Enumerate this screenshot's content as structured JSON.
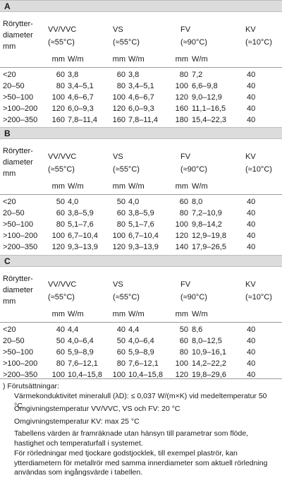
{
  "sections": [
    {
      "label": "A",
      "headers": {
        "row_header": [
          "Rörytter-",
          "diameter",
          "mm"
        ],
        "vv": [
          "VV/VVC",
          "(≈55°C)"
        ],
        "vs": [
          "VS",
          "(≈55°C)"
        ],
        "fv": [
          "FV",
          "(≈90°C)"
        ],
        "kv": [
          "KV",
          "(≈10°C)"
        ]
      },
      "units": {
        "mm": "mm",
        "wm": "W/m"
      },
      "rows": [
        [
          "<20",
          "60",
          "3,8",
          "60",
          "3,8",
          "80",
          "7,2",
          "40"
        ],
        [
          "20–50",
          "80",
          "3,4–5,1",
          "80",
          "3,4–5,1",
          "100",
          "6,6–9,8",
          "40"
        ],
        [
          ">50–100",
          "100",
          "4,6–6,7",
          "100",
          "4,6–6,7",
          "120",
          "9,0–12,9",
          "40"
        ],
        [
          ">100–200",
          "120",
          "6,0–9,3",
          "120",
          "6,0–9,3",
          "160",
          "11,1–16,5",
          "40"
        ],
        [
          ">200–350",
          "160",
          "7,8–11,4",
          "160",
          "7,8–11,4",
          "180",
          "15,4–22,3",
          "40"
        ]
      ]
    },
    {
      "label": "B",
      "headers": {
        "row_header": [
          "Rörytter-",
          "diameter",
          "mm"
        ],
        "vv": [
          "VV/VVC",
          "(≈55°C)"
        ],
        "vs": [
          "VS",
          "(≈55°C)"
        ],
        "fv": [
          "FV",
          "(≈90°C)"
        ],
        "kv": [
          "KV",
          "(≈10°C)"
        ]
      },
      "units": {
        "mm": "mm",
        "wm": "W/m"
      },
      "rows": [
        [
          "<20",
          "50",
          "4,0",
          "50",
          "4,0",
          "60",
          "8,0",
          "40"
        ],
        [
          "20–50",
          "60",
          "3,8–5,9",
          "60",
          "3,8–5,9",
          "80",
          "7,2–10,9",
          "40"
        ],
        [
          ">50–100",
          "80",
          "5,1–7,6",
          "80",
          "5,1–7,6",
          "100",
          "9,8–14,2",
          "40"
        ],
        [
          ">100–200",
          "100",
          "6,7–10,4",
          "100",
          "6,7–10,4",
          "120",
          "12,9–19,8",
          "40"
        ],
        [
          ">200–350",
          "120",
          "9,3–13,9",
          "120",
          "9,3–13,9",
          "140",
          "17,9–26,5",
          "40"
        ]
      ]
    },
    {
      "label": "C",
      "headers": {
        "row_header": [
          "Rörytter-",
          "diameter",
          "mm"
        ],
        "vv": [
          "VV/VVC",
          "(≈55°C)"
        ],
        "vs": [
          "VS",
          "(≈55°C)"
        ],
        "fv": [
          "FV",
          "(≈90°C)"
        ],
        "kv": [
          "KV",
          "(≈10°C)"
        ]
      },
      "units": {
        "mm": "mm",
        "wm": "W/m"
      },
      "rows": [
        [
          "<20",
          "40",
          "4,4",
          "40",
          "4,4",
          "50",
          "8,6",
          "40"
        ],
        [
          "20–50",
          "50",
          "4,0–6,4",
          "50",
          "4,0–6,4",
          "60",
          "8,0–12,5",
          "40"
        ],
        [
          ">50–100",
          "60",
          "5,9–8,9",
          "60",
          "5,9–8,9",
          "80",
          "10,9–16,1",
          "40"
        ],
        [
          ">100–200",
          "80",
          "7,6–12,1",
          "80",
          "7,6–12,1",
          "100",
          "14,2–22,2",
          "40"
        ],
        [
          ">200–350",
          "100",
          "10,4–15,8",
          "100",
          "10,4–15,8",
          "120",
          "19,8–29,6",
          "40"
        ]
      ]
    }
  ],
  "footnote": {
    "title": ")   Förutsättningar:",
    "lines": [
      "Värmekonduktivitet mineralull (λD): ≤ 0,037 W/(m×K) vid medeltemperatur 50 °C.",
      "Omgivningstemperatur VV/VVC, VS och FV: 20 °C",
      "Omgivningstemperatur KV: max 25 °C",
      "Tabellens värden är framräknade utan hänsyn till parametrar som flöde, hastighet och temperaturfall i systemet.",
      "För rörledningar med tjockare godstjocklek, till exempel plaströr, kan ytterdiametern för metallrör med samma innerdiameter som aktuell rörledning användas som ingångsvärde i tabellen."
    ]
  }
}
